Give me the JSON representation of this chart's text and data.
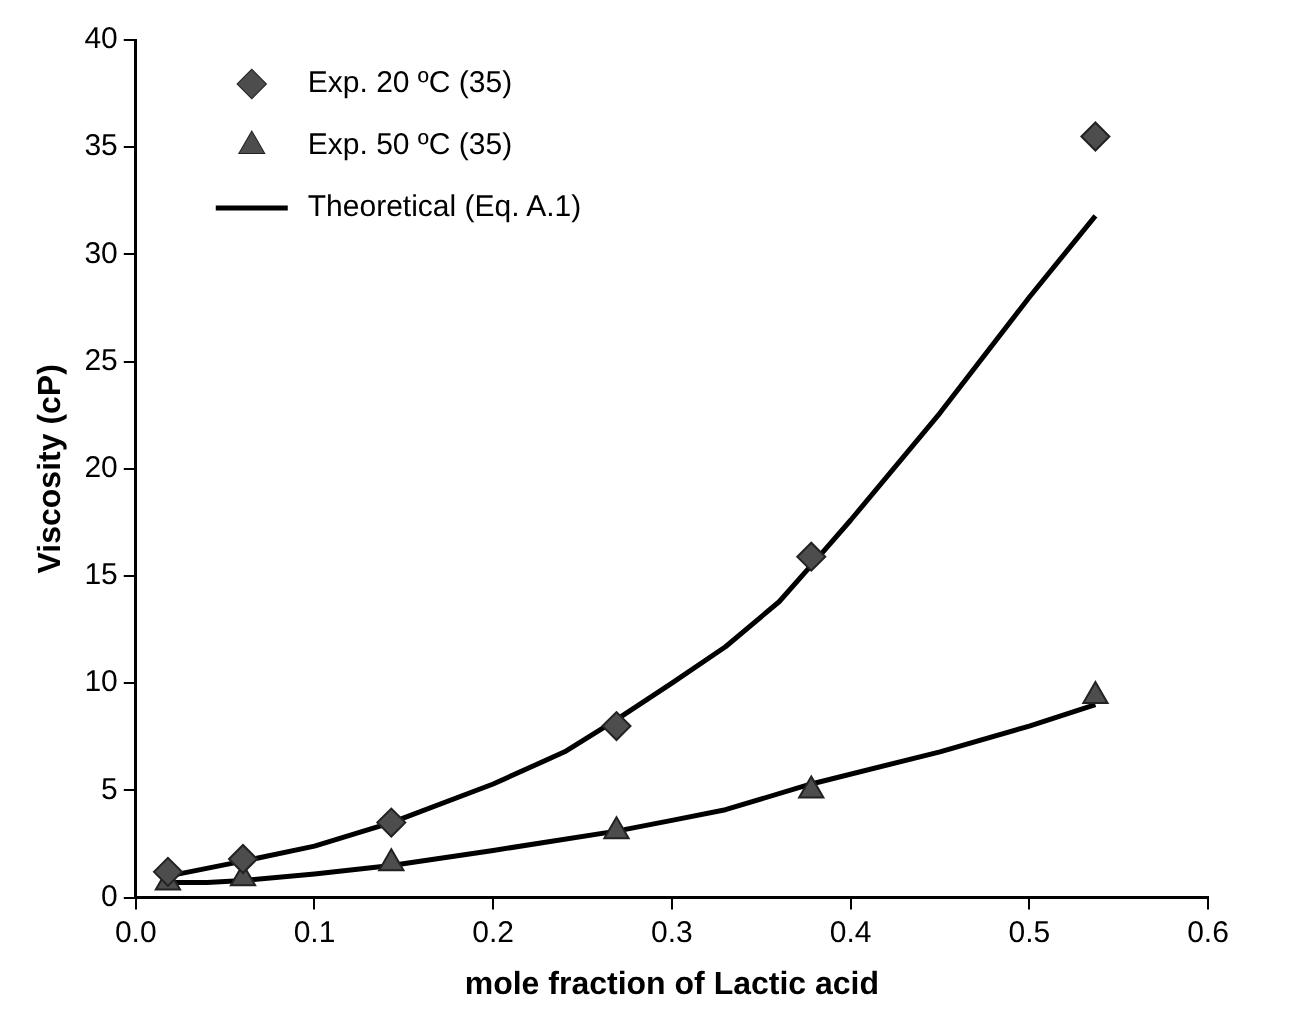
{
  "chart_data": {
    "type": "scatter",
    "xlabel": "mole fraction of Lactic acid",
    "ylabel": "Viscosity (cP)",
    "xlim": [
      0,
      0.6
    ],
    "ylim": [
      0,
      40
    ],
    "xticks": [
      {
        "value": 0,
        "label": "0.0"
      },
      0.1,
      0.2,
      0.3,
      0.4,
      0.5,
      0.6
    ],
    "yticks": [
      0,
      5,
      10,
      15,
      20,
      25,
      30,
      35,
      40
    ],
    "grid": false,
    "legend": "top left",
    "series": [
      {
        "name": "Exp. 20 ºC (35)",
        "type": "scatter",
        "marker": "diamond",
        "color": "#4d4d4d",
        "x": [
          0.018,
          0.06,
          0.143,
          0.269,
          0.378,
          0.537
        ],
        "values": [
          1.2,
          1.8,
          3.5,
          8.0,
          15.9,
          35.5
        ]
      },
      {
        "name": "Exp. 50 ºC (35)",
        "type": "scatter",
        "marker": "triangle",
        "color": "#4d4d4d",
        "x": [
          0.018,
          0.06,
          0.143,
          0.269,
          0.378,
          0.537
        ],
        "values": [
          0.7,
          0.9,
          1.6,
          3.1,
          5.0,
          9.4
        ]
      },
      {
        "name": "Theoretical (Eq. A.1)",
        "type": "line",
        "marker": "none",
        "line_style": "solid",
        "color": "#000000",
        "x": [
          0.018,
          0.06,
          0.1,
          0.143,
          0.2,
          0.24,
          0.269,
          0.3,
          0.33,
          0.36,
          0.378,
          0.4,
          0.45,
          0.5,
          0.537
        ],
        "values": [
          1.0,
          1.7,
          2.4,
          3.5,
          5.3,
          6.8,
          8.3,
          10,
          11.7,
          13.8,
          15.5,
          17.6,
          22.6,
          28,
          31.8
        ]
      },
      {
        "type": "line",
        "marker": "none",
        "line_style": "solid",
        "color": "#000000",
        "x": [
          0.018,
          0.04,
          0.06,
          0.1,
          0.143,
          0.2,
          0.269,
          0.3,
          0.33,
          0.378,
          0.45,
          0.5,
          0.537
        ],
        "values": [
          0.7,
          0.7,
          0.8,
          1.1,
          1.5,
          2.2,
          3.1,
          3.6,
          4.1,
          5.3,
          6.8,
          8.0,
          9.0
        ]
      }
    ]
  }
}
